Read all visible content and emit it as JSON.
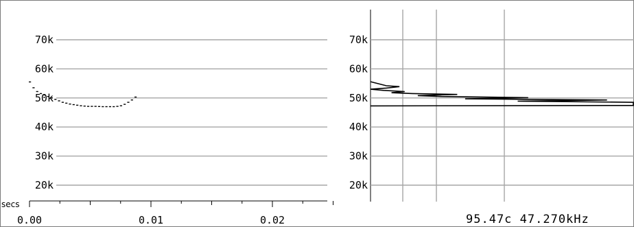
{
  "chart_data": [
    {
      "type": "scatter",
      "xlabel": "secs",
      "ylabel": "",
      "xlim": [
        0,
        0.0255
      ],
      "ylim": [
        15000,
        80000
      ],
      "xticks": [
        "0.00",
        "0.01",
        "0.02"
      ],
      "yticks": [
        "70k",
        "60k",
        "50k",
        "40k",
        "30k",
        "20k"
      ],
      "grid": "horizontal",
      "series": [
        {
          "x": [
            0.0,
            0.0003,
            0.0006,
            0.0009,
            0.0012,
            0.0015,
            0.0018,
            0.0021,
            0.0024,
            0.0027,
            0.003,
            0.0033,
            0.0036,
            0.0039,
            0.0042,
            0.0045,
            0.0048,
            0.0051,
            0.0054,
            0.0057,
            0.006,
            0.0063,
            0.0066,
            0.0069,
            0.0072,
            0.0075,
            0.0078,
            0.0081,
            0.0084,
            0.0087
          ],
          "y": [
            55500,
            53500,
            52200,
            51500,
            51000,
            50500,
            50000,
            49500,
            49000,
            48500,
            48200,
            47900,
            47700,
            47500,
            47300,
            47200,
            47100,
            47100,
            47100,
            47050,
            47000,
            47000,
            47000,
            47000,
            47100,
            47300,
            47800,
            48500,
            49300,
            50300
          ]
        }
      ]
    },
    {
      "type": "line",
      "xlabel": "",
      "ylabel": "",
      "ylim": [
        15000,
        80000
      ],
      "yticks": [
        "70k",
        "60k",
        "50k",
        "40k",
        "30k",
        "20k"
      ],
      "grid": "both",
      "readout": "95.47c 47.270kHz",
      "series": [
        {
          "points": [
            [
              0.0,
              55600
            ],
            [
              0.06,
              54200
            ],
            [
              0.11,
              53900
            ],
            [
              0.06,
              53400
            ],
            [
              0.0,
              53000
            ],
            [
              0.05,
              52600
            ],
            [
              0.13,
              52200
            ],
            [
              0.08,
              51800
            ],
            [
              0.16,
              51500
            ],
            [
              0.33,
              51200
            ],
            [
              0.18,
              50800
            ],
            [
              0.27,
              50500
            ],
            [
              0.6,
              50100
            ],
            [
              0.36,
              49700
            ],
            [
              0.9,
              49300
            ],
            [
              0.56,
              48900
            ],
            [
              1.0,
              48500
            ],
            [
              1.0,
              47400
            ],
            [
              0.0,
              47270
            ]
          ]
        }
      ]
    }
  ]
}
